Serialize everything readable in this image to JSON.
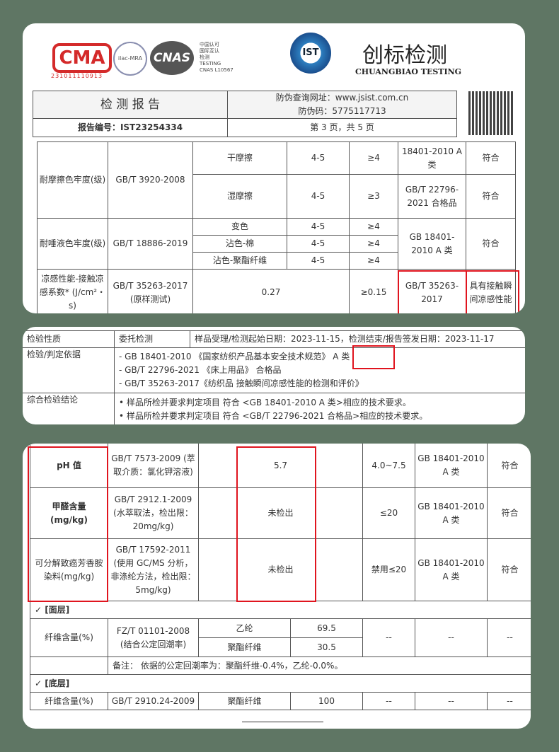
{
  "header": {
    "cma_label": "CMA",
    "cma_number": "231011110913",
    "ilac_label": "ilac-MRA",
    "cnas_label": "CNAS",
    "cnas_text": [
      "中国认可",
      "国际互认",
      "检测",
      "TESTING",
      "CNAS L10567"
    ],
    "ist_label": "IST",
    "brand_cn": "创标检测",
    "brand_en": "CHUANGBIAO TESTING",
    "report_title": "检 测 报 告",
    "anti_fake_url": "防伪查询网址：www.jsist.com.cn",
    "anti_fake_code": "防伪码：5775117713",
    "report_no": "报告编号：IST23254334",
    "page": "第 3 页，共 5 页"
  },
  "table1": {
    "rows": [
      {
        "item": "耐摩擦色牢度(级)",
        "method": "GB/T 3920-2008",
        "subs": [
          {
            "name": "干摩擦",
            "result": "4-5",
            "req": "≥4",
            "std": "18401-2010 A 类",
            "verdict": "符合"
          },
          {
            "name": "湿摩擦",
            "result": "4-5",
            "req": "≥3",
            "std": "GB/T 22796-2021 合格品",
            "verdict": "符合"
          }
        ]
      },
      {
        "item": "耐唾液色牢度(级)",
        "method": "GB/T 18886-2019",
        "subs": [
          {
            "name": "变色",
            "result": "4-5",
            "req": "≥4"
          },
          {
            "name": "沾色-棉",
            "result": "4-5",
            "req": "≥4"
          },
          {
            "name": "沾色-聚酯纤维",
            "result": "4-5",
            "req": "≥4"
          }
        ],
        "std": "GB 18401-2010 A 类",
        "verdict": "符合"
      },
      {
        "item": "凉感性能-接触凉感系数* (J/cm²・s)",
        "method": "GB/T 35263-2017 (原样测试)",
        "result": "0.27",
        "req": "≥0.15",
        "std": "GB/T 35263-2017",
        "verdict": "具有接触瞬间凉感性能"
      }
    ]
  },
  "table2": {
    "nature_label": "检验性质",
    "nature": "委托检测",
    "dates": "样品受理/检测起始日期：2023-11-15，检测结束/报告签发日期：2023-11-17",
    "basis_label": "检验/判定依据",
    "basis": [
      "- GB 18401-2010 《国家纺织产品基本安全技术规范》",
      "- GB/T 22796-2021 《床上用品》 合格品",
      "- GB/T 35263-2017《纺织品 接触瞬间凉感性能的检测和评价》"
    ],
    "basis_a": "A 类",
    "conclusion_label": "综合检验结论",
    "conclusion": [
      "• 样品所检并要求判定项目 符合 <GB 18401-2010 A 类>相应的技术要求。",
      "• 样品所检并要求判定项目 符合 <GB/T 22796-2021 合格品>相应的技术要求。"
    ]
  },
  "table3": {
    "rows": [
      {
        "item": "pH 值",
        "method": "GB/T 7573-2009 (萃取介质：氯化钾溶液)",
        "result": "5.7",
        "req": "4.0~7.5",
        "std": "GB 18401-2010 A 类",
        "verdict": "符合"
      },
      {
        "item": "甲醛含量 (mg/kg)",
        "method": "GB/T 2912.1-2009 (水萃取法，检出限：20mg/kg)",
        "result": "未检出",
        "req": "≤20",
        "std": "GB 18401-2010 A 类",
        "verdict": "符合"
      },
      {
        "item": "可分解致癌芳香胺染料(mg/kg)",
        "method": "GB/T 17592-2011 (使用 GC/MS 分析，非涤纶方法，检出限：5mg/kg)",
        "result": "未检出",
        "req": "禁用≤20",
        "std": "GB 18401-2010 A 类",
        "verdict": "符合"
      }
    ],
    "face_label": "✓ [面层]",
    "fiber_label": "纤维含量(%)",
    "face_method": "FZ/T 01101-2008 (结合公定回潮率)",
    "face_fibers": [
      {
        "name": "乙纶",
        "value": "69.5"
      },
      {
        "name": "聚酯纤维",
        "value": "30.5"
      }
    ],
    "dash": "--",
    "note": "备注： 依据的公定回潮率为：聚酯纤维-0.4%，乙纶-0.0%。",
    "back_label": "✓ [底层]",
    "back_method": "GB/T 2910.24-2009",
    "back_fiber": {
      "name": "聚酯纤维",
      "value": "100"
    }
  },
  "colors": {
    "background": "#5f7664",
    "highlight": "#e0141e"
  }
}
